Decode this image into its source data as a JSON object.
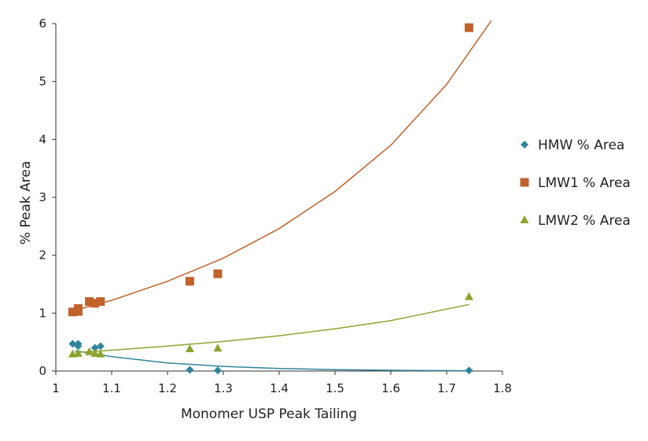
{
  "chart_data": {
    "type": "scatter",
    "title": "",
    "xlabel": "Monomer USP Peak Tailing",
    "ylabel": "% Peak Area",
    "xlim": [
      1,
      1.8
    ],
    "ylim": [
      0,
      6
    ],
    "xticks": [
      "1",
      "1.1",
      "1.2",
      "1.3",
      "1.4",
      "1.5",
      "1.6",
      "1.7",
      "1.8"
    ],
    "yticks": [
      "0",
      "1",
      "2",
      "3",
      "4",
      "5",
      "6"
    ],
    "grid": false,
    "legend_position": "right",
    "series": [
      {
        "name": "HMW % Area",
        "marker": "diamond",
        "color": "#31859c",
        "points": [
          [
            1.03,
            0.47
          ],
          [
            1.04,
            0.47
          ],
          [
            1.04,
            0.43
          ],
          [
            1.07,
            0.4
          ],
          [
            1.08,
            0.43
          ],
          [
            1.24,
            0.02
          ],
          [
            1.29,
            0.01
          ],
          [
            1.74,
            0.01
          ]
        ],
        "trendline": {
          "type": "exponential",
          "points": [
            [
              1.035,
              0.35
            ],
            [
              1.1,
              0.25
            ],
            [
              1.2,
              0.14
            ],
            [
              1.3,
              0.08
            ],
            [
              1.4,
              0.045
            ],
            [
              1.5,
              0.025
            ],
            [
              1.6,
              0.014
            ],
            [
              1.74,
              0.006
            ]
          ]
        }
      },
      {
        "name": "LMW1 % Area",
        "marker": "square",
        "color": "#c0622c",
        "points": [
          [
            1.03,
            1.02
          ],
          [
            1.04,
            1.03
          ],
          [
            1.04,
            1.08
          ],
          [
            1.06,
            1.2
          ],
          [
            1.07,
            1.17
          ],
          [
            1.08,
            1.2
          ],
          [
            1.24,
            1.55
          ],
          [
            1.29,
            1.68
          ],
          [
            1.74,
            5.93
          ]
        ],
        "trendline": {
          "type": "exponential",
          "points": [
            [
              1.035,
              1.05
            ],
            [
              1.1,
              1.22
            ],
            [
              1.2,
              1.55
            ],
            [
              1.3,
              1.95
            ],
            [
              1.4,
              2.46
            ],
            [
              1.5,
              3.1
            ],
            [
              1.6,
              3.9
            ],
            [
              1.7,
              4.95
            ],
            [
              1.78,
              6.05
            ]
          ]
        }
      },
      {
        "name": "LMW2 % Area",
        "marker": "triangle",
        "color": "#8ba52f",
        "points": [
          [
            1.03,
            0.29
          ],
          [
            1.04,
            0.3
          ],
          [
            1.06,
            0.33
          ],
          [
            1.07,
            0.3
          ],
          [
            1.08,
            0.29
          ],
          [
            1.24,
            0.38
          ],
          [
            1.29,
            0.39
          ],
          [
            1.74,
            1.28
          ]
        ],
        "trendline": {
          "type": "exponential",
          "points": [
            [
              1.035,
              0.32
            ],
            [
              1.1,
              0.36
            ],
            [
              1.2,
              0.43
            ],
            [
              1.3,
              0.51
            ],
            [
              1.4,
              0.61
            ],
            [
              1.5,
              0.73
            ],
            [
              1.6,
              0.87
            ],
            [
              1.74,
              1.15
            ]
          ]
        }
      }
    ]
  }
}
